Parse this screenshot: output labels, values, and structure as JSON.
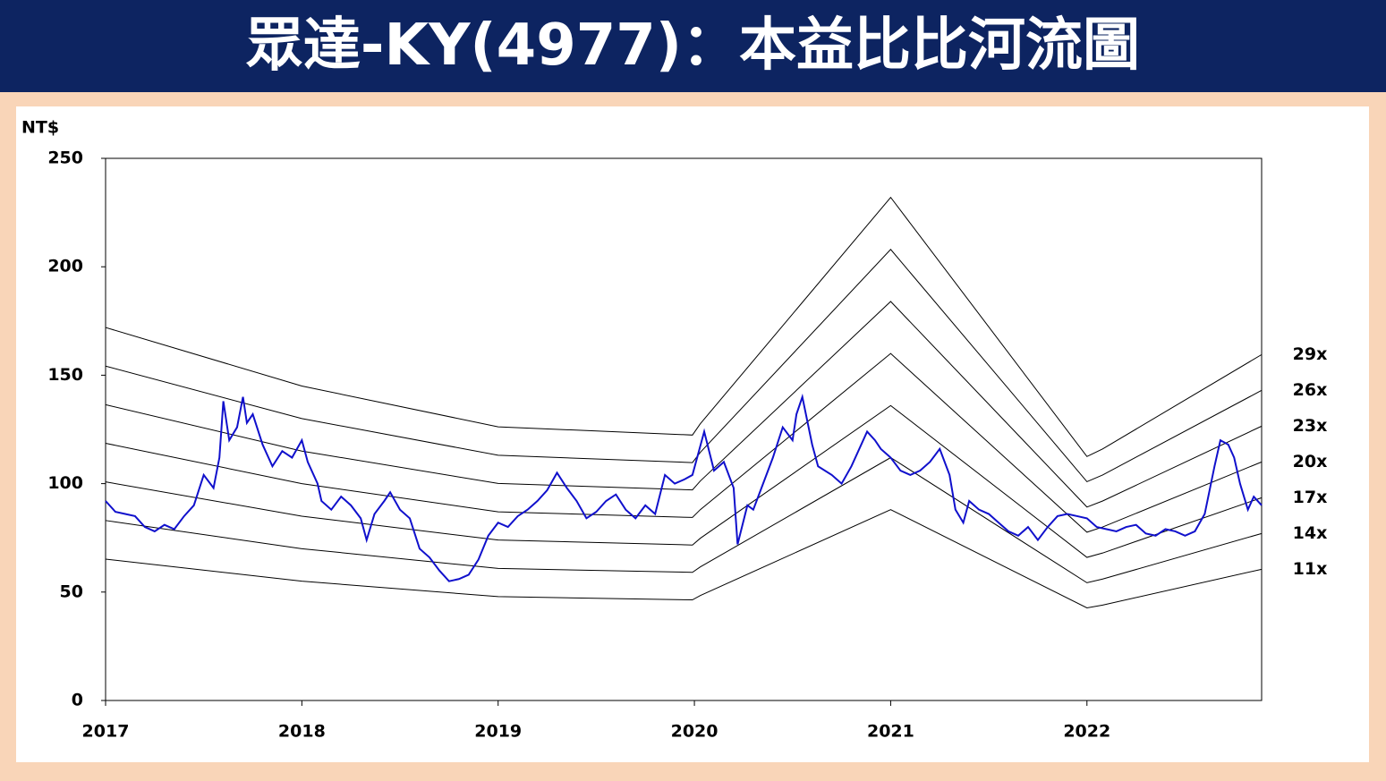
{
  "chart_data": {
    "type": "line",
    "title": "眾達-KY(4977)：本益比比河流圖",
    "y_label": "NT$",
    "xlim": [
      2017,
      2022.89
    ],
    "xticks": [
      2017,
      2018,
      2019,
      2020,
      2021,
      2022
    ],
    "ylim": [
      0,
      250
    ],
    "yticks": [
      0,
      50,
      100,
      150,
      200,
      250
    ],
    "series": [
      {
        "name": "29x",
        "color": "#000000",
        "x": [
          2017,
          2018,
          2019,
          2019.99,
          2020.03,
          2021,
          2022,
          2022.08,
          2022.89
        ],
        "values": [
          172.0,
          145,
          126.2,
          122.4,
          127.6,
          232,
          112.5,
          116,
          159.5
        ]
      },
      {
        "name": "26x",
        "color": "#000000",
        "x": [
          2017,
          2018,
          2019,
          2019.99,
          2020.03,
          2021,
          2022,
          2022.08,
          2022.89
        ],
        "values": [
          154.2,
          130,
          113.1,
          109.7,
          114.4,
          208,
          100.9,
          104,
          143
        ]
      },
      {
        "name": "23x",
        "color": "#000000",
        "x": [
          2017,
          2018,
          2019,
          2019.99,
          2020.03,
          2021,
          2022,
          2022.08,
          2022.89
        ],
        "values": [
          136.4,
          115,
          100.1,
          97.1,
          101.2,
          184,
          89.2,
          92,
          126.5
        ]
      },
      {
        "name": "20x",
        "color": "#000000",
        "x": [
          2017,
          2018,
          2019,
          2019.99,
          2020.03,
          2021,
          2022,
          2022.08,
          2022.89
        ],
        "values": [
          118.6,
          100,
          87,
          84.4,
          88,
          160,
          77.6,
          80,
          110
        ]
      },
      {
        "name": "17x",
        "color": "#000000",
        "x": [
          2017,
          2018,
          2019,
          2019.99,
          2020.03,
          2021,
          2022,
          2022.08,
          2022.89
        ],
        "values": [
          100.8,
          85,
          74.0,
          71.7,
          74.8,
          136,
          66.0,
          68,
          93.5
        ]
      },
      {
        "name": "14x",
        "color": "#000000",
        "x": [
          2017,
          2018,
          2019,
          2019.99,
          2020.03,
          2021,
          2022,
          2022.08,
          2022.89
        ],
        "values": [
          83.0,
          70,
          60.9,
          59.1,
          61.6,
          112,
          54.3,
          56,
          77
        ]
      },
      {
        "name": "11x",
        "color": "#000000",
        "x": [
          2017,
          2018,
          2019,
          2019.99,
          2020.03,
          2021,
          2022,
          2022.08,
          2022.89
        ],
        "values": [
          65.2,
          55,
          47.9,
          46.4,
          48.4,
          88,
          42.7,
          44,
          60.5
        ]
      },
      {
        "color": "#1010cc",
        "x": [
          2017.0,
          2017.05,
          2017.1,
          2017.15,
          2017.2,
          2017.25,
          2017.3,
          2017.35,
          2017.4,
          2017.45,
          2017.5,
          2017.55,
          2017.58,
          2017.6,
          2017.63,
          2017.67,
          2017.7,
          2017.72,
          2017.75,
          2017.8,
          2017.85,
          2017.9,
          2017.95,
          2018.0,
          2018.03,
          2018.08,
          2018.1,
          2018.15,
          2018.2,
          2018.25,
          2018.3,
          2018.33,
          2018.37,
          2018.42,
          2018.45,
          2018.5,
          2018.55,
          2018.6,
          2018.65,
          2018.7,
          2018.75,
          2018.8,
          2018.85,
          2018.9,
          2018.95,
          2019.0,
          2019.05,
          2019.1,
          2019.15,
          2019.2,
          2019.25,
          2019.3,
          2019.35,
          2019.4,
          2019.45,
          2019.5,
          2019.55,
          2019.6,
          2019.65,
          2019.7,
          2019.75,
          2019.8,
          2019.85,
          2019.9,
          2019.95,
          2019.99,
          2020.05,
          2020.1,
          2020.15,
          2020.2,
          2020.22,
          2020.27,
          2020.3,
          2020.35,
          2020.4,
          2020.45,
          2020.5,
          2020.52,
          2020.55,
          2020.6,
          2020.63,
          2020.7,
          2020.75,
          2020.8,
          2020.88,
          2020.92,
          2020.95,
          2021.0,
          2021.05,
          2021.1,
          2021.15,
          2021.2,
          2021.25,
          2021.3,
          2021.33,
          2021.37,
          2021.4,
          2021.45,
          2021.5,
          2021.55,
          2021.6,
          2021.65,
          2021.7,
          2021.75,
          2021.8,
          2021.85,
          2021.9,
          2021.95,
          2022.0,
          2022.05,
          2022.1,
          2022.15,
          2022.2,
          2022.25,
          2022.3,
          2022.35,
          2022.4,
          2022.45,
          2022.5,
          2022.55,
          2022.6,
          2022.65,
          2022.68,
          2022.72,
          2022.75,
          2022.78,
          2022.82,
          2022.85,
          2022.89
        ],
        "values": [
          92,
          87,
          86,
          85,
          80,
          78,
          81,
          79,
          85,
          90,
          104,
          98,
          112,
          138,
          120,
          126,
          140,
          128,
          132,
          118,
          108,
          115,
          112,
          120,
          110,
          100,
          92,
          88,
          94,
          90,
          84,
          74,
          86,
          92,
          96,
          88,
          84,
          70,
          66,
          60,
          55,
          56,
          58,
          65,
          76,
          82,
          80,
          85,
          88,
          92,
          97,
          105,
          98,
          92,
          84,
          87,
          92,
          95,
          88,
          84,
          90,
          86,
          104,
          100,
          102,
          104,
          124,
          106,
          110,
          98,
          72,
          90,
          88,
          100,
          112,
          126,
          120,
          132,
          140,
          118,
          108,
          104,
          100,
          108,
          124,
          120,
          116,
          112,
          106,
          104,
          106,
          110,
          116,
          104,
          88,
          82,
          92,
          88,
          86,
          82,
          78,
          76,
          80,
          74,
          80,
          85,
          86,
          85,
          84,
          80,
          79,
          78,
          80,
          81,
          77,
          76,
          79,
          78,
          76,
          78,
          86,
          108,
          120,
          118,
          112,
          100,
          88,
          94,
          90
        ]
      }
    ]
  }
}
